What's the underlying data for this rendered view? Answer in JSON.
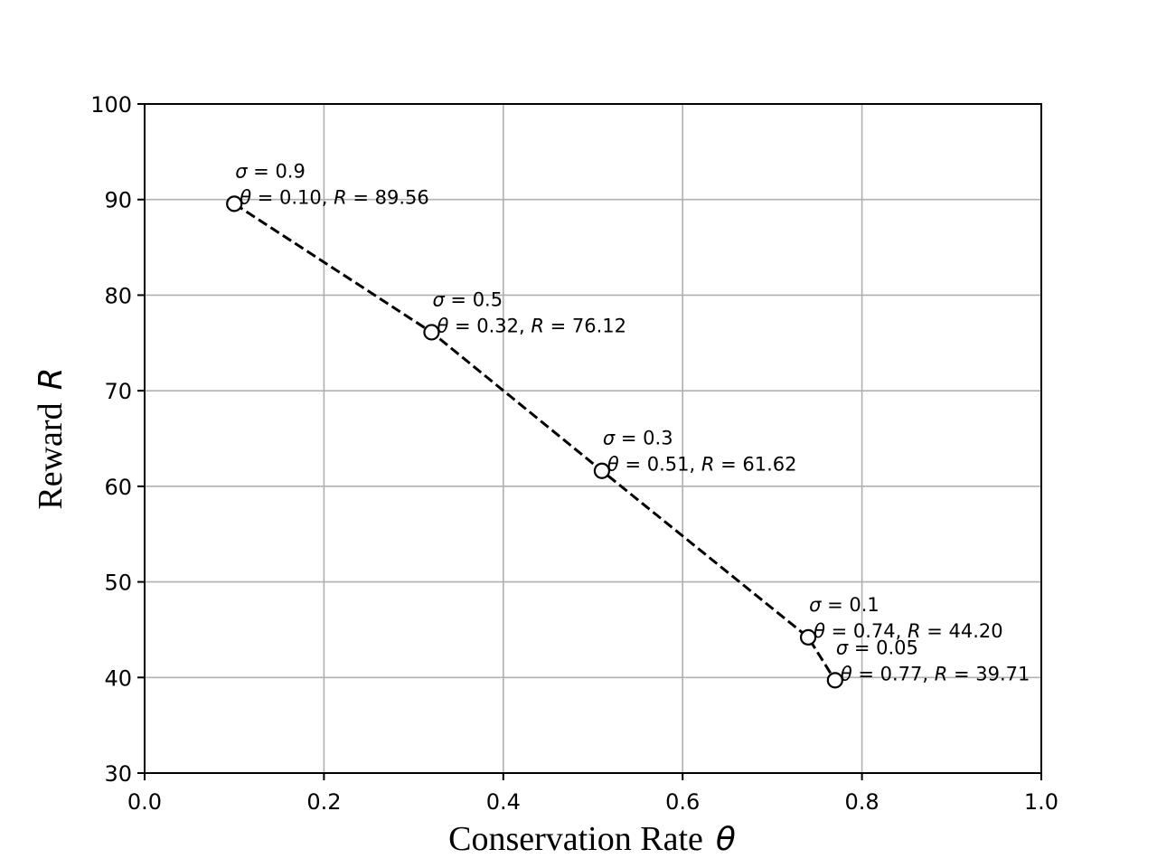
{
  "chart_data": {
    "type": "line",
    "xlabel": {
      "text": "Conservation Rate",
      "symbol": "θ"
    },
    "ylabel": {
      "text": "Reward",
      "symbol": "R"
    },
    "xlim": [
      0.0,
      1.0
    ],
    "ylim": [
      30,
      100
    ],
    "xticks": [
      "0.0",
      "0.2",
      "0.4",
      "0.6",
      "0.8",
      "1.0"
    ],
    "yticks": [
      "30",
      "40",
      "50",
      "60",
      "70",
      "80",
      "90",
      "100"
    ],
    "grid": true,
    "line_style": "dashed",
    "marker": "open-circle",
    "line_color": "#000000",
    "grid_color": "#b0b0b0",
    "points": [
      {
        "sigma": "0.9",
        "theta": 0.1,
        "reward": 89.56,
        "theta_label": "0.10",
        "reward_label": "89.56"
      },
      {
        "sigma": "0.5",
        "theta": 0.32,
        "reward": 76.12,
        "theta_label": "0.32",
        "reward_label": "76.12"
      },
      {
        "sigma": "0.3",
        "theta": 0.51,
        "reward": 61.62,
        "theta_label": "0.51",
        "reward_label": "61.62"
      },
      {
        "sigma": "0.1",
        "theta": 0.74,
        "reward": 44.2,
        "theta_label": "0.74",
        "reward_label": "44.20"
      },
      {
        "sigma": "0.05",
        "theta": 0.77,
        "reward": 39.71,
        "theta_label": "0.77",
        "reward_label": "39.71"
      }
    ]
  }
}
